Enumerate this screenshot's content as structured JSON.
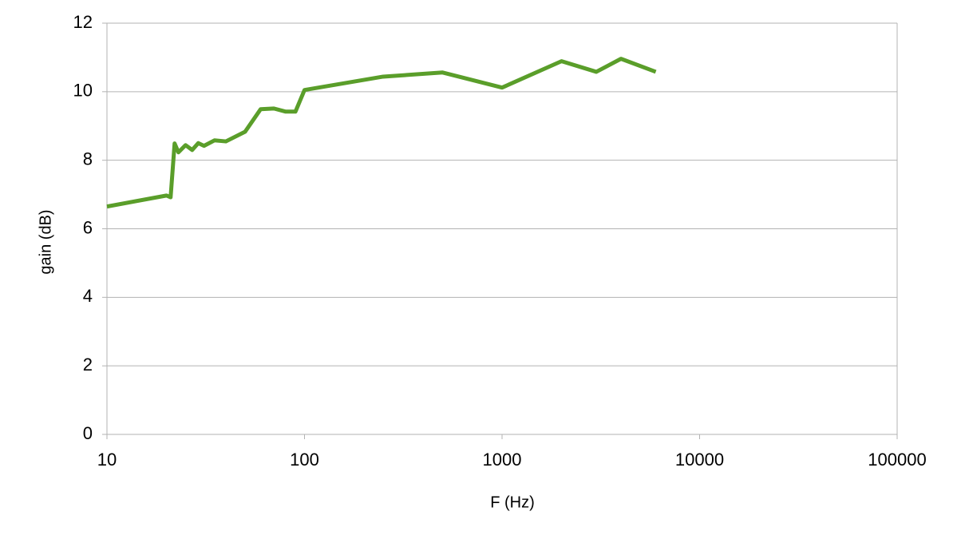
{
  "chart_data": {
    "type": "line",
    "x_label": "F (Hz)",
    "y_label": "gain (dB)",
    "x": [
      10,
      20,
      21,
      22,
      23,
      25,
      27,
      29,
      31,
      35,
      40,
      50,
      60,
      70,
      80,
      90,
      100,
      250,
      500,
      1000,
      2000,
      3000,
      4000,
      6000
    ],
    "series": [
      {
        "name": "gain",
        "color": "#5a9e2a",
        "values": [
          6.65,
          6.97,
          6.92,
          8.49,
          8.23,
          8.44,
          8.3,
          8.5,
          8.42,
          8.58,
          8.55,
          8.83,
          9.49,
          9.51,
          9.42,
          9.42,
          10.05,
          10.44,
          10.56,
          10.12,
          10.89,
          10.58,
          10.96,
          10.58
        ]
      }
    ],
    "xscale": "log",
    "xlim": [
      10,
      100000
    ],
    "xticks": [
      10,
      100,
      1000,
      10000,
      100000
    ],
    "ylim": [
      0,
      12
    ],
    "yticks": [
      0,
      2,
      4,
      6,
      8,
      10,
      12
    ],
    "grid": true
  }
}
